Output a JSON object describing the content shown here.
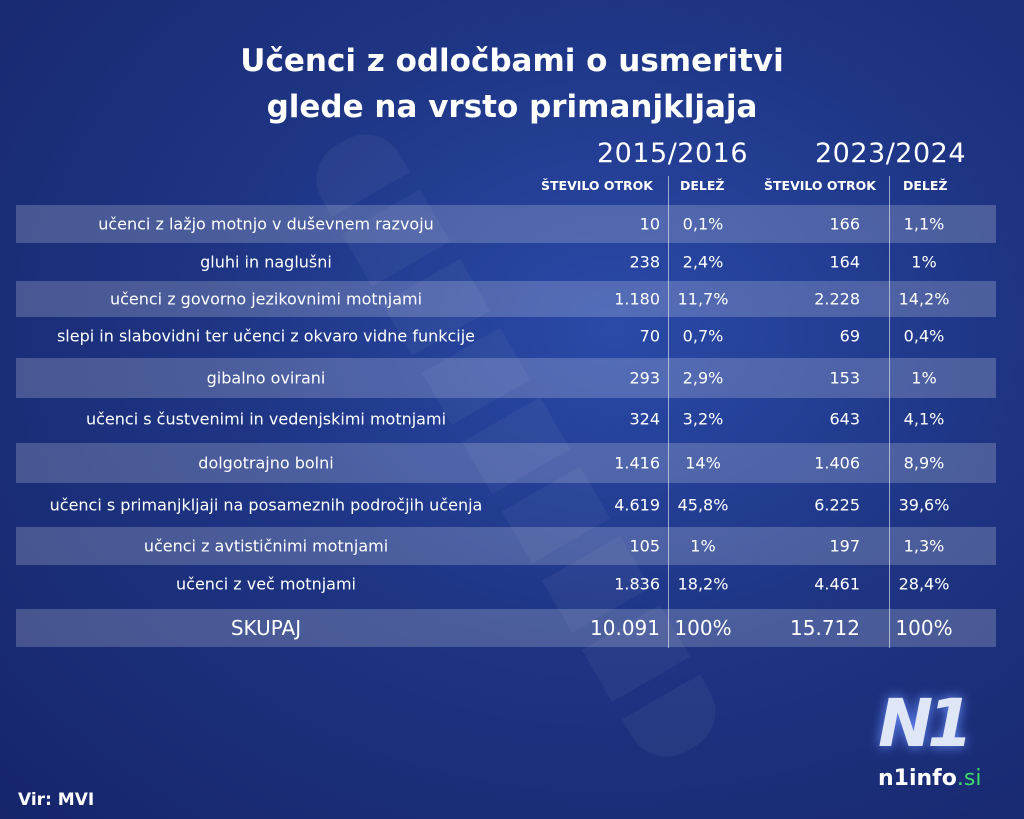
{
  "title_line1": "Učenci z odločbami o usmeritvi",
  "title_line2": "glede na vrsto primanjkljaja",
  "chart_data": {
    "type": "table",
    "groups": [
      "2015/2016",
      "2023/2024"
    ],
    "columns": [
      "ŠTEVILO OTROK",
      "DELEŽ",
      "ŠTEVILO OTROK",
      "DELEŽ"
    ],
    "rows": [
      {
        "label": "učenci z lažjo motnjo v duševnem razvoju",
        "v": [
          "10",
          "0,1%",
          "166",
          "1,1%"
        ]
      },
      {
        "label": "gluhi in naglušni",
        "v": [
          "238",
          "2,4%",
          "164",
          "1%"
        ]
      },
      {
        "label": "učenci z govorno jezikovnimi motnjami",
        "v": [
          "1.180",
          "11,7%",
          "2.228",
          "14,2%"
        ]
      },
      {
        "label": "slepi in slabovidni ter učenci z okvaro vidne funkcije",
        "v": [
          "70",
          "0,7%",
          "69",
          "0,4%"
        ]
      },
      {
        "label": "gibalno ovirani",
        "v": [
          "293",
          "2,9%",
          "153",
          "1%"
        ]
      },
      {
        "label": "učenci s čustvenimi in vedenjskimi motnjami",
        "v": [
          "324",
          "3,2%",
          "643",
          "4,1%"
        ]
      },
      {
        "label": "dolgotrajno bolni",
        "v": [
          "1.416",
          "14%",
          "1.406",
          "8,9%"
        ]
      },
      {
        "label": "učenci s primanjkljaji na posameznih področjih učenja",
        "v": [
          "4.619",
          "45,8%",
          "6.225",
          "39,6%"
        ]
      },
      {
        "label": "učenci z avtističnimi motnjami",
        "v": [
          "105",
          "1%",
          "197",
          "1,3%"
        ]
      },
      {
        "label": "učenci z več motnjami",
        "v": [
          "1.836",
          "18,2%",
          "4.461",
          "28,4%"
        ]
      }
    ],
    "total": {
      "label": "SKUPAJ",
      "v": [
        "10.091",
        "100%",
        "15.712",
        "100%"
      ]
    }
  },
  "source": "Vir: MVI",
  "logo": {
    "mark": "N1",
    "site": "n1info",
    "tld": ".si",
    "tld_color": "#3ddc6a"
  },
  "watermark": "n1info.si"
}
